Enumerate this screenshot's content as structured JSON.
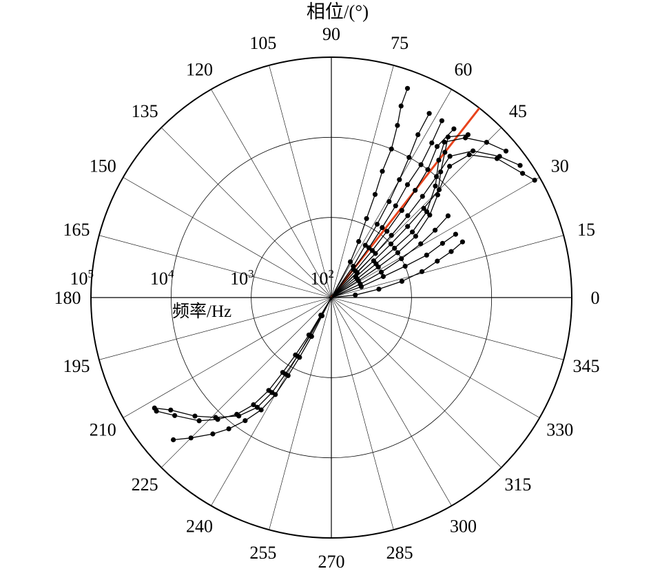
{
  "chart_data": {
    "type": "scatter",
    "subtype": "polar-log",
    "title": "",
    "angle_axis_label": "相位/(°)",
    "radial_axis_label": "频率/Hz",
    "angle_ticks": [
      "0",
      "15",
      "30",
      "45",
      "60",
      "75",
      "90",
      "105",
      "120",
      "135",
      "150",
      "165",
      "180",
      "195",
      "210",
      "225",
      "240",
      "255",
      "270",
      "285",
      "300",
      "315",
      "330",
      "345"
    ],
    "radial_scale": "log",
    "radial_range": [
      100,
      100000
    ],
    "radial_ticks": [
      {
        "base": "10",
        "exp": "2"
      },
      {
        "base": "10",
        "exp": "3"
      },
      {
        "base": "10",
        "exp": "4"
      },
      {
        "base": "10",
        "exp": "5"
      }
    ],
    "reference_line": {
      "angle_deg": 52,
      "color": "#e8431c"
    },
    "series": [
      {
        "points": [
          [
            62,
            320
          ],
          [
            64,
            600
          ],
          [
            66,
            1200
          ],
          [
            67,
            2500
          ],
          [
            68,
            5000
          ],
          [
            68,
            10000
          ],
          [
            69,
            20000
          ],
          [
            70,
            35000
          ],
          [
            70,
            60000
          ]
        ]
      },
      {
        "points": [
          [
            55,
            300
          ],
          [
            57,
            600
          ],
          [
            58,
            1200
          ],
          [
            59,
            2500
          ],
          [
            60,
            5000
          ],
          [
            61,
            10000
          ],
          [
            62,
            20000
          ],
          [
            62,
            40000
          ]
        ]
      },
      {
        "points": [
          [
            52,
            280
          ],
          [
            53,
            600
          ],
          [
            54,
            1200
          ],
          [
            55,
            2500
          ],
          [
            56,
            5000
          ],
          [
            56,
            10000
          ],
          [
            57,
            20000
          ],
          [
            58,
            40000
          ]
        ]
      },
      {
        "points": [
          [
            48,
            280
          ],
          [
            49,
            600
          ],
          [
            50,
            1200
          ],
          [
            51,
            2500
          ],
          [
            52,
            5000
          ],
          [
            53,
            10000
          ],
          [
            55,
            20000
          ],
          [
            54,
            40000
          ]
        ]
      },
      {
        "points": [
          [
            44,
            280
          ],
          [
            45,
            600
          ],
          [
            46,
            1200
          ],
          [
            47,
            2500
          ],
          [
            48,
            5000
          ],
          [
            49,
            10000
          ],
          [
            50,
            20000
          ],
          [
            46,
            35000
          ],
          [
            40,
            55000
          ],
          [
            35,
            75000
          ]
        ]
      },
      {
        "points": [
          [
            40,
            250
          ],
          [
            41,
            500
          ],
          [
            42,
            1000
          ],
          [
            43,
            2000
          ],
          [
            44,
            4000
          ],
          [
            45,
            8000
          ],
          [
            48,
            16000
          ],
          [
            46,
            30000
          ],
          [
            40,
            50000
          ],
          [
            33,
            70000
          ],
          [
            30,
            85000
          ]
        ]
      },
      {
        "points": [
          [
            36,
            250
          ],
          [
            37,
            500
          ],
          [
            38,
            1000
          ],
          [
            39,
            2000
          ],
          [
            42,
            4000
          ],
          [
            47,
            8000
          ],
          [
            52,
            15000
          ],
          [
            54,
            25000
          ],
          [
            50,
            40000
          ],
          [
            45,
            55000
          ],
          [
            40,
            70000
          ]
        ]
      },
      {
        "points": [
          [
            32,
            250
          ],
          [
            33,
            500
          ],
          [
            34,
            1000
          ],
          [
            36,
            2000
          ],
          [
            40,
            4000
          ],
          [
            44,
            7000
          ],
          [
            49,
            12000
          ],
          [
            52,
            20000
          ],
          [
            54,
            30000
          ],
          [
            50,
            45000
          ]
        ]
      },
      {
        "points": [
          [
            25,
            250
          ],
          [
            27,
            500
          ],
          [
            29,
            1000
          ],
          [
            31,
            2000
          ],
          [
            33,
            3500
          ],
          [
            35,
            6000
          ]
        ]
      },
      {
        "points": [
          [
            20,
            250
          ],
          [
            22,
            500
          ],
          [
            23,
            1000
          ],
          [
            24,
            2000
          ],
          [
            26,
            3500
          ],
          [
            27,
            5500
          ]
        ]
      },
      {
        "points": [
          [
            6,
            200
          ],
          [
            10,
            400
          ],
          [
            13,
            800
          ],
          [
            16,
            1500
          ],
          [
            19,
            2500
          ],
          [
            21,
            4000
          ],
          [
            23,
            6000
          ]
        ]
      },
      {
        "points": [
          [
            239,
            180
          ],
          [
            239,
            350
          ],
          [
            238,
            700
          ],
          [
            237,
            1300
          ],
          [
            236,
            2500
          ],
          [
            234,
            4500
          ],
          [
            231,
            7500
          ],
          [
            227,
            12000
          ],
          [
            223,
            18000
          ],
          [
            217,
            28000
          ],
          [
            213,
            40000
          ]
        ]
      },
      {
        "points": [
          [
            241,
            180
          ],
          [
            241,
            350
          ],
          [
            240,
            700
          ],
          [
            239,
            1300
          ],
          [
            238,
            2500
          ],
          [
            236,
            4500
          ],
          [
            232,
            7500
          ],
          [
            226,
            12000
          ],
          [
            221,
            18000
          ],
          [
            215,
            28000
          ],
          [
            212,
            40000
          ]
        ]
      },
      {
        "points": [
          [
            243,
            180
          ],
          [
            243,
            350
          ],
          [
            242,
            700
          ],
          [
            241,
            1300
          ],
          [
            240,
            2500
          ],
          [
            238,
            4500
          ],
          [
            235,
            7500
          ],
          [
            232,
            12000
          ],
          [
            229,
            18000
          ],
          [
            225,
            30000
          ],
          [
            222,
            45000
          ]
        ]
      }
    ]
  }
}
